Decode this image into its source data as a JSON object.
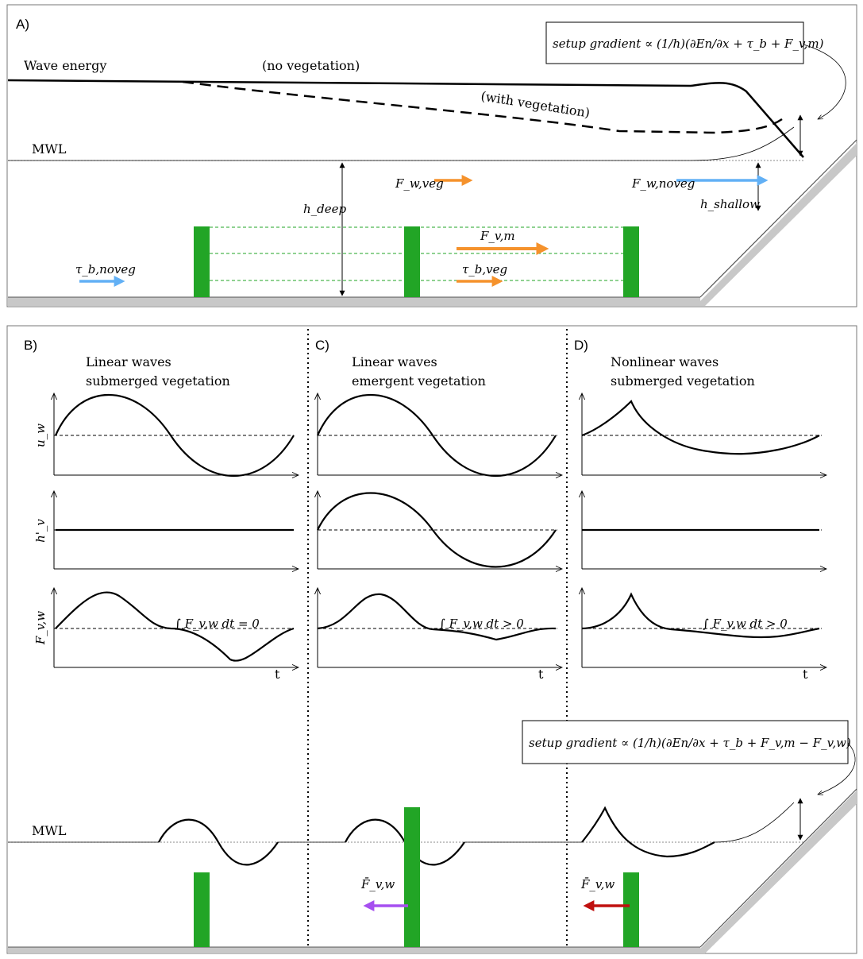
{
  "panelA": {
    "label": "A)",
    "wave_energy": "Wave energy",
    "no_veg": "(no vegetation)",
    "with_veg": "(with vegetation)",
    "mwl": "MWL",
    "formula_a": "setup gradient ∝ (1/h)(∂En/∂x + τ_b + F_v,m)",
    "h_deep": "h_deep",
    "h_shallow": "h_shallow",
    "f_w_veg": "F_w,veg",
    "f_w_noveg": "F_w,noveg",
    "f_v_m": "F_v,m",
    "tau_b_veg": "τ_b,veg",
    "tau_b_noveg": "τ_b,noveg"
  },
  "panelB": {
    "label": "B)",
    "title1": "Linear waves",
    "title2": "submerged vegetation",
    "integral": "∫ F_v,w dt = 0"
  },
  "panelC": {
    "label": "C)",
    "title1": "Linear waves",
    "title2": "emergent vegetation",
    "integral": "∫ F_v,w dt > 0"
  },
  "panelD": {
    "label": "D)",
    "title1": "Nonlinear waves",
    "title2": "submerged vegetation",
    "integral": "∫ F_v,w dt > 0"
  },
  "axes": {
    "u_w": "u_w",
    "h_v": "h'_v",
    "f_vw": "F_v,w",
    "t": "t"
  },
  "bottom": {
    "mwl": "MWL",
    "formula_b": "setup gradient ∝ (1/h)(∂En/∂x + τ_b + F_v,m − F_v,w)",
    "fvw_mean": "F̄_v,w"
  },
  "colors": {
    "vegetation": "#22a526",
    "arrow_blue": "#62b0f5",
    "arrow_orange": "#f5922c",
    "arrow_purple": "#a64ff0",
    "arrow_red": "#c0100f",
    "ground": "#c8c8c8"
  }
}
